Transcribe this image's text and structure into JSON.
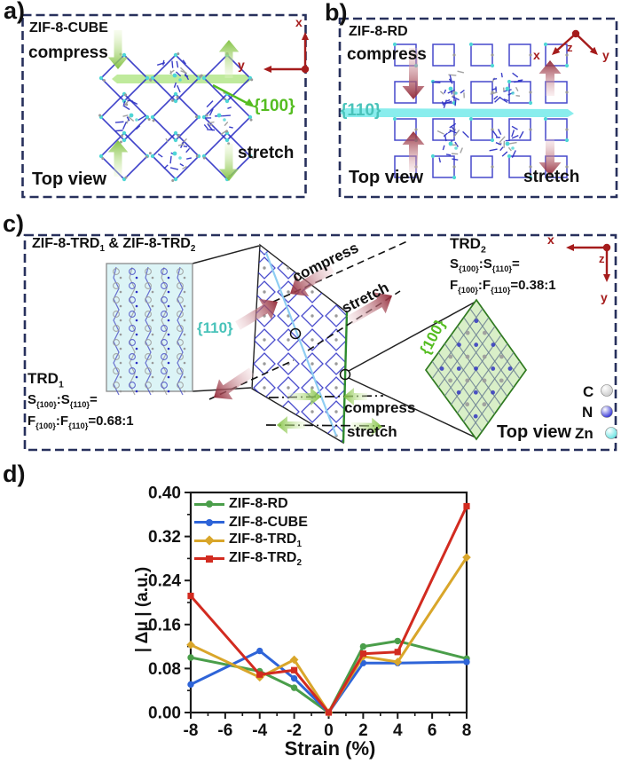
{
  "figure": {
    "panel_a": {
      "label": "a)",
      "title": "ZIF-8-CUBE",
      "compress": "compress",
      "stretch": "stretch",
      "view": "Top view",
      "plane": "{100}",
      "plane_color": "#55bd21",
      "axis_x": "x",
      "axis_y": "y"
    },
    "panel_b": {
      "label": "b)",
      "title": "ZIF-8-RD",
      "compress": "compress",
      "stretch": "stretch",
      "view": "Top view",
      "plane": "{110}",
      "plane_color": "#49c3ba",
      "axis_x": "x",
      "axis_y": "y",
      "axis_z": "z"
    },
    "panel_c": {
      "label": "c)",
      "title": "ZIF-8-TRD~1~ & ZIF-8-TRD~2~",
      "plane_110": "{110}",
      "plane_100": "{100}",
      "compress_diag": "compress",
      "stretch_diag": "stretch",
      "compress_horiz": "compress",
      "stretch_horiz": "stretch",
      "trd1": {
        "name": "TRD~1~",
        "surface_ratio": "S~{100}~:S~{110}~=",
        "facet_ratio": "F~{100}~:F~{110}~=0.68:1"
      },
      "trd2": {
        "name": "TRD~2~",
        "surface_ratio": "S~{100}~:S~{110}~=",
        "facet_ratio": "F~{100}~:F~{110}~=0.38:1"
      },
      "view": "Top view",
      "atom_legend": [
        {
          "element": "C",
          "color": "#c9c9c9"
        },
        {
          "element": "N",
          "color": "#2b2bd5"
        },
        {
          "element": "Zn",
          "color": "#63e3e3"
        }
      ],
      "axis_x": "x",
      "axis_y": "y",
      "axis_z": "z"
    },
    "panel_d": {
      "label": "d)"
    }
  },
  "chart_data": {
    "type": "line",
    "x": [
      -8,
      -4,
      -2,
      0,
      2,
      4,
      8
    ],
    "series": [
      {
        "name": "ZIF-8-RD",
        "color": "#4a9e4a",
        "marker": "circle",
        "values": [
          0.1,
          0.075,
          0.045,
          0.0,
          0.12,
          0.13,
          0.098
        ]
      },
      {
        "name": "ZIF-8-CUBE",
        "color": "#2e64d8",
        "marker": "circle",
        "values": [
          0.051,
          0.112,
          0.062,
          0.0,
          0.09,
          0.09,
          0.092
        ]
      },
      {
        "name": "ZIF-8-TRD~1~",
        "color": "#d9a62a",
        "marker": "diamond",
        "values": [
          0.123,
          0.064,
          0.096,
          0.0,
          0.102,
          0.092,
          0.282
        ]
      },
      {
        "name": "ZIF-8-TRD~2~",
        "color": "#d22b20",
        "marker": "square",
        "values": [
          0.212,
          0.069,
          0.077,
          0.0,
          0.107,
          0.11,
          0.375
        ]
      }
    ],
    "title": "",
    "xlabel": "Strain (%)",
    "ylabel": "| Δμ |  (a.u.)",
    "xlim": [
      -8,
      8
    ],
    "ylim": [
      0.0,
      0.4
    ],
    "xticks": [
      -8,
      -6,
      -4,
      -2,
      0,
      2,
      4,
      6,
      8
    ],
    "yticks": [
      0.0,
      0.08,
      0.16,
      0.24,
      0.32,
      0.4
    ],
    "legend_position": "top-left",
    "grid": false
  },
  "colors": {
    "panel_border": "#27305c",
    "axes_arrows": "#a51c1c",
    "green_arrow": "#7cbf3a",
    "maroon_arrow": "#8f2433",
    "band_100": "#7fd63a",
    "band_110": "#74eaea",
    "molecule_blue": "#2b2fc4",
    "molecule_gray": "#9a9a9a",
    "molecule_cyan": "#4fd6d6"
  }
}
